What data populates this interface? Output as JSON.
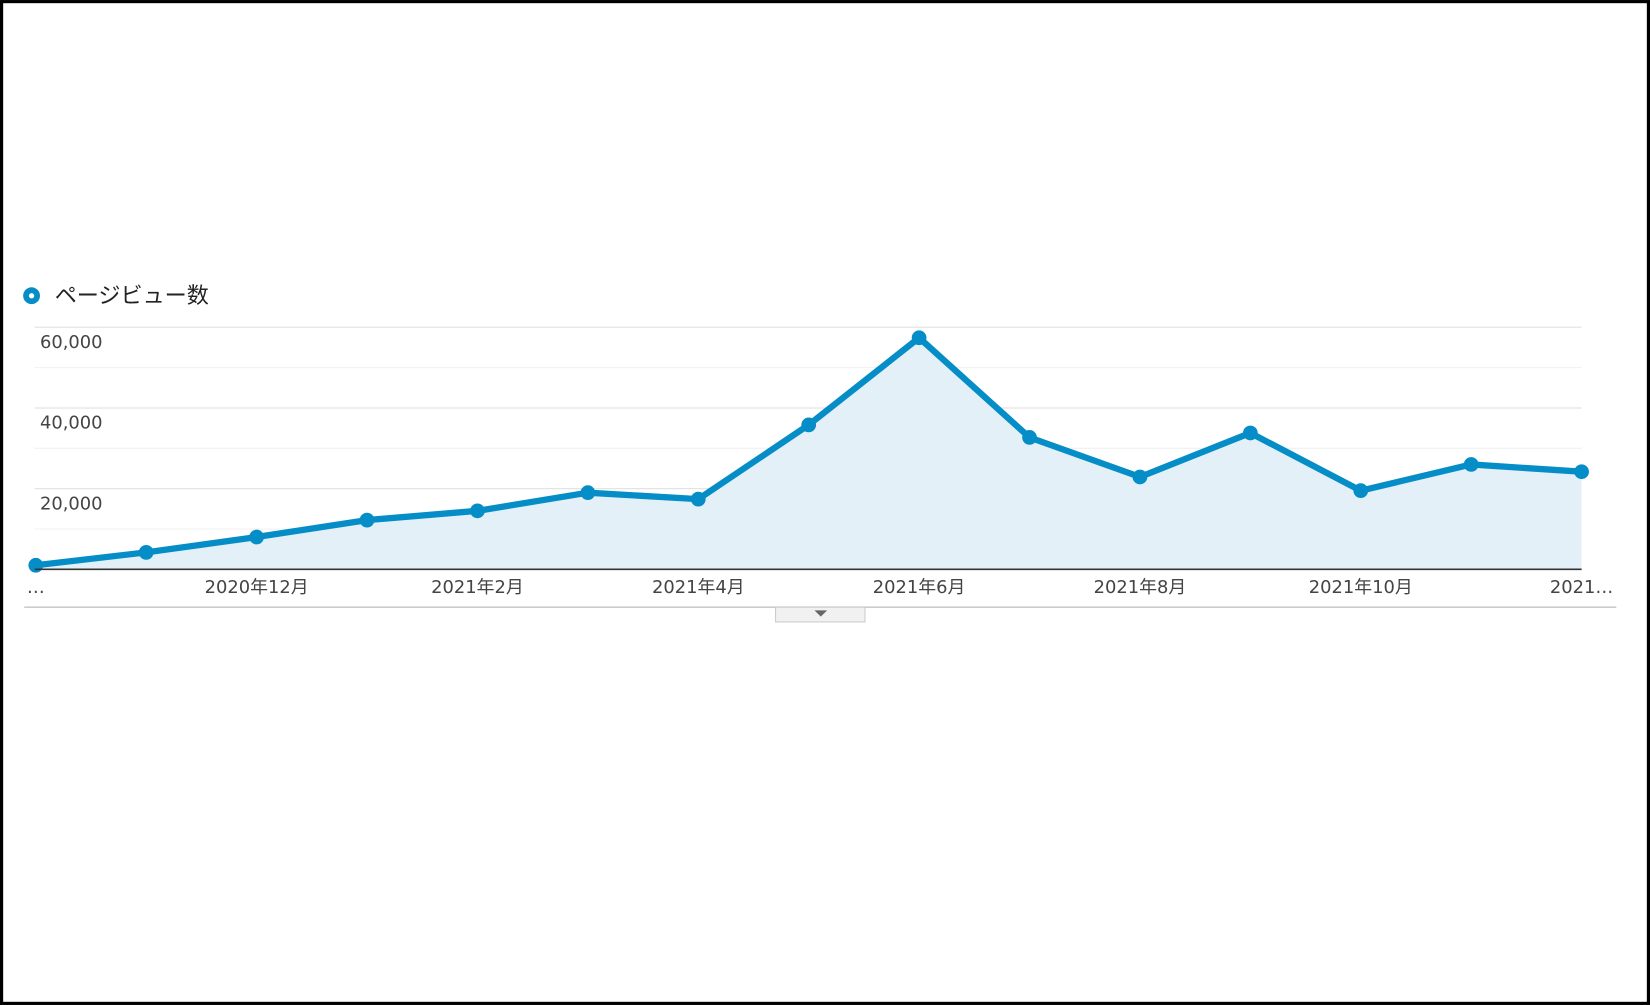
{
  "chart_data": {
    "type": "line",
    "categories": [
      "…",
      null,
      "2020年12月",
      null,
      "2021年2月",
      null,
      "2021年4月",
      null,
      "2021年6月",
      null,
      "2021年8月",
      null,
      "2021年10月",
      null,
      "2021…"
    ],
    "series": [
      {
        "name": "ページビュー数",
        "color": "#058dc7",
        "values": [
          1000,
          4200,
          8000,
          12200,
          14500,
          19000,
          17400,
          35800,
          57400,
          32700,
          22900,
          33800,
          19500,
          26000,
          24200
        ]
      }
    ],
    "ylim": [
      0,
      60000
    ],
    "yticks": [
      {
        "value": 20000,
        "label": "20,000"
      },
      {
        "value": 40000,
        "label": "40,000"
      },
      {
        "value": 60000,
        "label": "60,000"
      }
    ],
    "minor_gridlines": [
      10000,
      30000,
      50000
    ],
    "grid": true,
    "area_fill": "#e4f0f8",
    "legend": "top-left"
  }
}
